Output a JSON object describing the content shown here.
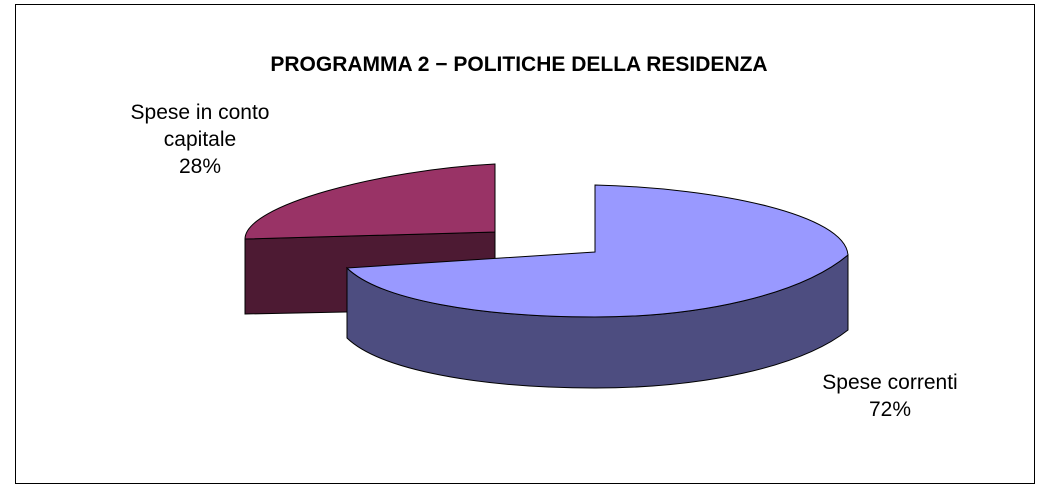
{
  "chart_data": {
    "type": "pie",
    "title": "PROGRAMMA 2 − POLITICHE DELLA RESIDENZA",
    "three_d": true,
    "exploded": true,
    "slices": [
      {
        "label_lines": [
          "Spese in conto",
          "capitale"
        ],
        "percent_label": "28%",
        "value": 28,
        "top_color": "#993366",
        "side_color": "#4D1A33"
      },
      {
        "label_lines": [
          "Spese correnti"
        ],
        "percent_label": "72%",
        "value": 72,
        "top_color": "#9999FF",
        "side_color": "#4D4D80"
      }
    ]
  }
}
